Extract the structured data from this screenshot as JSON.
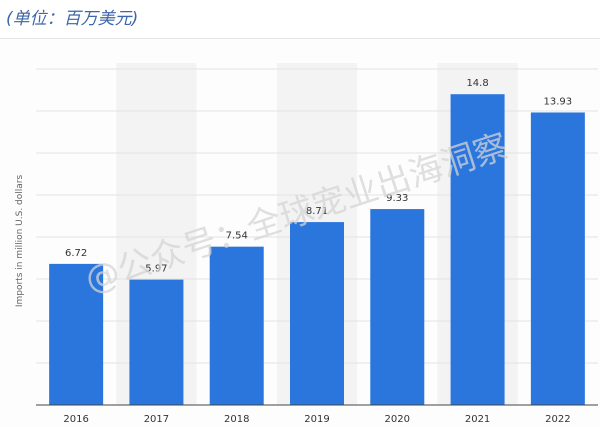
{
  "caption": {
    "unit": "(单位：百万美元)"
  },
  "watermark": "@公众号：全球宠业出海洞察",
  "chart_data": {
    "type": "bar",
    "title": "",
    "xlabel": "",
    "ylabel": "Imports in million U.S. dollars",
    "categories": [
      "2016",
      "2017",
      "2018",
      "2019",
      "2020",
      "2021",
      "2022"
    ],
    "values": [
      6.72,
      5.97,
      7.54,
      8.71,
      9.33,
      14.8,
      13.93
    ],
    "ylim": [
      0,
      16
    ],
    "grid": true,
    "bar_color": "#2a76dd"
  }
}
